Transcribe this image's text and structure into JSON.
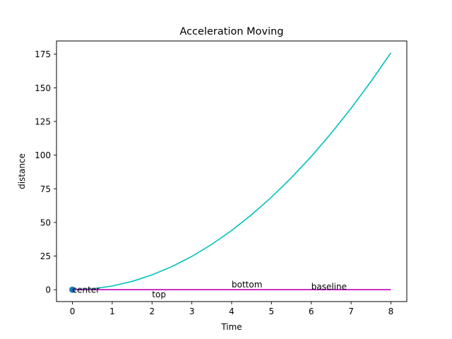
{
  "chart_data": {
    "type": "line",
    "title": "Acceleration Moving",
    "xlabel": "Time",
    "ylabel": "distance",
    "xlim": [
      -0.4,
      8.4
    ],
    "ylim": [
      -8.8,
      184.8
    ],
    "xticks": [
      0,
      1,
      2,
      3,
      4,
      5,
      6,
      7,
      8
    ],
    "yticks": [
      0,
      25,
      50,
      75,
      100,
      125,
      150,
      175
    ],
    "grid": false,
    "series": [
      {
        "color": "#00bfbf",
        "x": [
          0,
          0.5,
          1,
          1.5,
          2,
          2.5,
          3,
          3.5,
          4,
          4.5,
          5,
          5.5,
          6,
          6.5,
          7,
          7.5,
          8
        ],
        "y": [
          0,
          0.69,
          2.75,
          6.19,
          11,
          17.19,
          24.75,
          33.69,
          44,
          55.69,
          68.75,
          83.19,
          99,
          116.19,
          134.75,
          154.69,
          176
        ]
      },
      {
        "color": "#bf00bf",
        "x": [
          0,
          8
        ],
        "y": [
          0,
          0
        ]
      }
    ],
    "points": [
      {
        "x": 0,
        "y": 0,
        "color": "#1f77b4"
      }
    ],
    "annotations": [
      {
        "text": "center",
        "x": 0,
        "y": 0,
        "va": "center"
      },
      {
        "text": "top",
        "x": 2,
        "y": 0,
        "va": "top"
      },
      {
        "text": "bottom",
        "x": 4,
        "y": 0,
        "va": "bottom"
      },
      {
        "text": "baseline",
        "x": 6,
        "y": 0,
        "va": "baseline"
      }
    ]
  }
}
